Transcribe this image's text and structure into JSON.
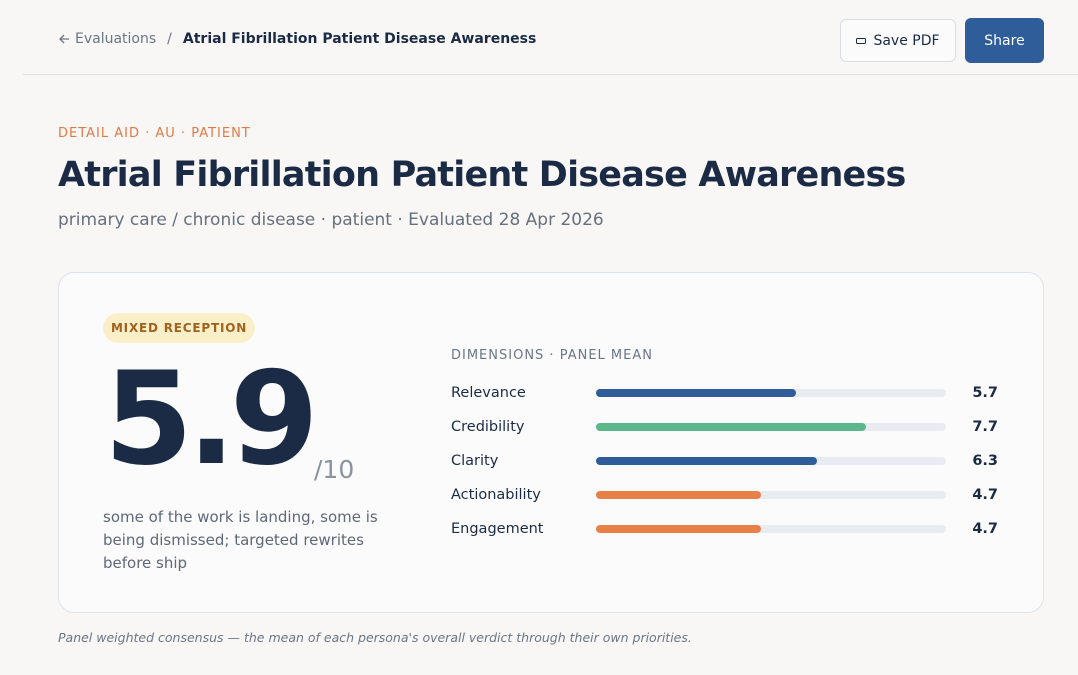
{
  "header": {
    "breadcrumb_parent": "Evaluations",
    "breadcrumb_current": "Atrial Fibrillation Patient Disease Awareness",
    "buttons": [
      "Save PDF",
      "Share"
    ]
  },
  "eyebrow": "DETAIL AID · AU · PATIENT",
  "title": "Atrial Fibrillation Patient Disease Awareness",
  "subtitle": "primary care / chronic disease · patient · Evaluated 28 Apr 2026",
  "summary": {
    "badge": "MIXED RECEPTION",
    "score": "5.9",
    "score_suffix": "/10",
    "description": "some of the work is landing, some is being dismissed; targeted rewrites before ship"
  },
  "chart_data": {
    "type": "bar",
    "orientation": "horizontal",
    "title": "DIMENSIONS · PANEL MEAN",
    "categories": [
      "Relevance",
      "Credibility",
      "Clarity",
      "Actionability",
      "Engagement"
    ],
    "values": [
      5.7,
      7.7,
      6.3,
      4.7,
      4.7
    ],
    "colors": [
      "#2f5d9a",
      "#5cb88a",
      "#2f5d9a",
      "#e8804a",
      "#e8804a"
    ],
    "xlim": [
      0,
      10
    ]
  },
  "footnote": "Panel weighted consensus — the mean of each persona's overall verdict through their own priorities."
}
